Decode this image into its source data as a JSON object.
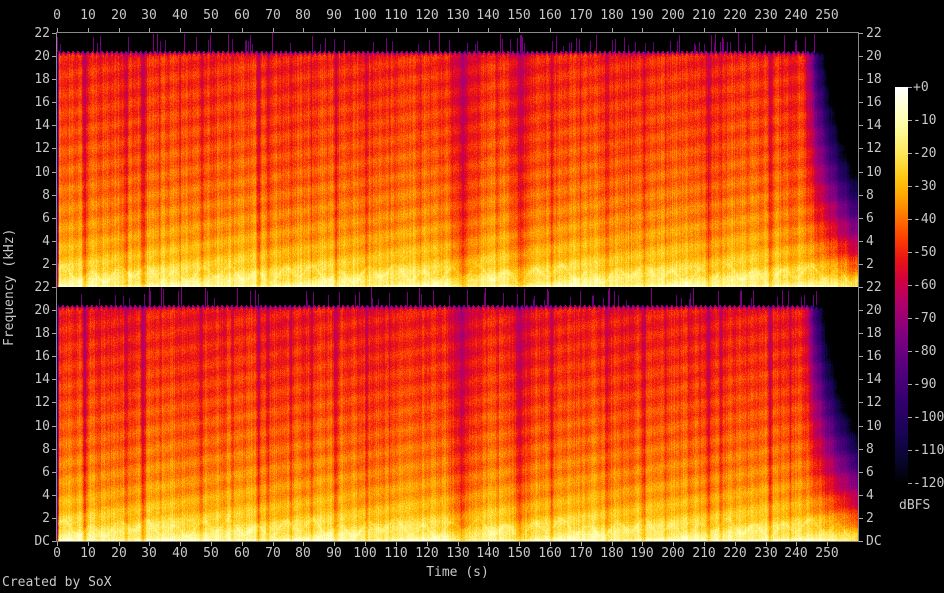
{
  "footer": {
    "credit": "Created by SoX"
  },
  "axes": {
    "time": {
      "label": "Time (s)",
      "tick_values": [
        0,
        10,
        20,
        30,
        40,
        50,
        60,
        70,
        80,
        90,
        100,
        110,
        120,
        130,
        140,
        150,
        160,
        170,
        180,
        190,
        200,
        210,
        220,
        230,
        240,
        250
      ]
    },
    "frequency": {
      "label": "Frequency (kHz)",
      "tick_values": [
        22,
        20,
        18,
        16,
        14,
        12,
        10,
        8,
        6,
        4,
        2
      ],
      "dc_label": "DC"
    },
    "colorbar": {
      "label": "dBFS",
      "ticks": [
        "+0",
        "-10",
        "-20",
        "-30",
        "-40",
        "-50",
        "-60",
        "-70",
        "-80",
        "-90",
        "-100",
        "-110",
        "-120"
      ]
    }
  },
  "chart_data": {
    "type": "heatmap",
    "subtype": "stereo-audio-spectrogram",
    "title": "",
    "channels": 2,
    "channel_names": [
      "channel-1-top",
      "channel-2-bottom"
    ],
    "duration_s": 260,
    "x_axis": {
      "label": "Time (s)",
      "min": 0,
      "max": 260,
      "tick_step": 10
    },
    "y_axis": {
      "label": "Frequency (kHz)",
      "min": 0,
      "max": 22,
      "tick_step": 2,
      "bottom_tick": "DC"
    },
    "z_axis": {
      "label": "dBFS",
      "min": -120,
      "max": 0,
      "tick_step": 10,
      "legend_position": "right"
    },
    "grid": false,
    "lowpass_cutoff_khz": 20.35,
    "fade_out_start_s": 242.5,
    "base_spectrum_db": [
      [
        0,
        -11
      ],
      [
        0.3,
        -13
      ],
      [
        0.8,
        -17
      ],
      [
        1.5,
        -21
      ],
      [
        2.5,
        -26
      ],
      [
        4,
        -31
      ],
      [
        6,
        -35
      ],
      [
        9,
        -39
      ],
      [
        13,
        -43
      ],
      [
        17,
        -46
      ],
      [
        20.4,
        -48
      ]
    ],
    "quiet_gaps": [
      [
        9,
        1.2,
        17
      ],
      [
        14,
        0.5,
        6
      ],
      [
        22.5,
        0.9,
        12
      ],
      [
        28,
        1.3,
        15
      ],
      [
        33.5,
        0.6,
        7
      ],
      [
        40,
        0.5,
        5
      ],
      [
        47,
        0.7,
        8
      ],
      [
        57,
        0.6,
        6
      ],
      [
        65.5,
        1.1,
        13
      ],
      [
        68.5,
        0.9,
        10
      ],
      [
        76,
        0.6,
        7
      ],
      [
        82.5,
        0.8,
        9
      ],
      [
        90.5,
        1.2,
        13
      ],
      [
        100.5,
        0.9,
        11
      ],
      [
        108,
        0.6,
        7
      ],
      [
        118,
        0.5,
        6
      ],
      [
        131.5,
        4.5,
        14
      ],
      [
        137,
        1.5,
        8
      ],
      [
        143,
        0.6,
        6
      ],
      [
        150.5,
        4.0,
        13
      ],
      [
        160.5,
        0.9,
        10
      ],
      [
        170,
        0.6,
        6
      ],
      [
        178.5,
        1.1,
        11
      ],
      [
        186,
        0.5,
        5
      ],
      [
        190.5,
        1.0,
        10
      ],
      [
        197.5,
        0.6,
        6
      ],
      [
        205,
        0.5,
        5
      ],
      [
        211.5,
        1.2,
        13
      ],
      [
        215.5,
        0.9,
        9
      ],
      [
        224,
        0.6,
        6
      ],
      [
        231.5,
        1.1,
        11
      ],
      [
        238,
        0.7,
        8
      ]
    ],
    "hf_transient_spikes": {
      "density": 0.09,
      "level_db_range": [
        -88,
        -70
      ]
    },
    "palette_stops": [
      [
        0,
        [
          255,
          255,
          255
        ]
      ],
      [
        -10,
        [
          255,
          255,
          178
        ]
      ],
      [
        -20,
        [
          255,
          232,
          90
        ]
      ],
      [
        -27,
        [
          255,
          200,
          20
        ]
      ],
      [
        -33,
        [
          255,
          166,
          0
        ]
      ],
      [
        -40,
        [
          255,
          110,
          0
        ]
      ],
      [
        -46,
        [
          252,
          62,
          2
        ]
      ],
      [
        -52,
        [
          235,
          20,
          20
        ]
      ],
      [
        -58,
        [
          210,
          2,
          60
        ]
      ],
      [
        -65,
        [
          178,
          0,
          105
        ]
      ],
      [
        -75,
        [
          128,
          0,
          128
        ]
      ],
      [
        -85,
        [
          85,
          0,
          125
        ]
      ],
      [
        -95,
        [
          50,
          0,
          110
        ]
      ],
      [
        -105,
        [
          24,
          4,
          84
        ]
      ],
      [
        -113,
        [
          8,
          6,
          45
        ]
      ],
      [
        -120,
        [
          0,
          0,
          0
        ]
      ]
    ]
  }
}
